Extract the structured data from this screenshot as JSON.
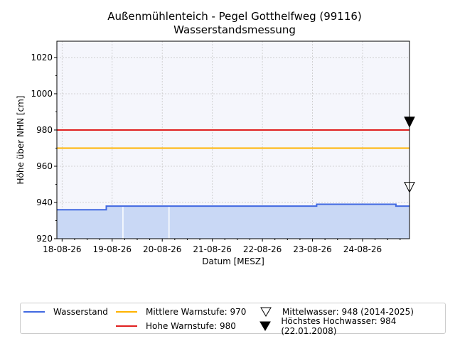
{
  "title": "Außenmühlenteich - Pegel Gotthelfweg (99116)",
  "subtitle": "Wasserstandsmessung",
  "colors": {
    "wasserstand": "#4169e1",
    "fill": "#c9d8f5",
    "mittlere_warnstufe": "#ffb300",
    "hohe_warnstufe": "#e02020",
    "plot_bg": "#f5f6fc"
  },
  "legend": {
    "wasserstand": "Wasserstand",
    "mittlere_warnstufe": "Mittlere Warnstufe: 970",
    "hohe_warnstufe": "Hohe Warnstufe: 980",
    "mittelwasser": "Mittelwasser: 948 (2014-2025)",
    "hoechstes_hochwasser": "Höchstes Hochwasser: 984 (22.01.2008)"
  },
  "chart_data": {
    "type": "area",
    "title": "Außenmühlenteich - Pegel Gotthelfweg (99116)",
    "subtitle": "Wasserstandsmessung",
    "xlabel": "Datum [MESZ]",
    "ylabel": "Höhe über NHN [cm]",
    "ylim": [
      920,
      1029
    ],
    "xlim": [
      "2026-08-17T21:30",
      "2026-08-24T22:30"
    ],
    "x_ticks": [
      "18-08-26",
      "19-08-26",
      "20-08-26",
      "21-08-26",
      "22-08-26",
      "23-08-26",
      "24-08-26"
    ],
    "y_ticks": [
      920,
      940,
      960,
      980,
      1000,
      1020
    ],
    "grid": true,
    "legend_position": "bottom",
    "series": [
      {
        "name": "Wasserstand",
        "x": [
          "2026-08-17T21:30",
          "2026-08-18T21:00",
          "2026-08-18T21:10",
          "2026-08-19T10:00",
          "2026-08-19T18:00",
          "2026-08-20T10:00",
          "2026-08-20T20:00",
          "2026-08-21T12:00",
          "2026-08-22T12:00",
          "2026-08-22T21:00",
          "2026-08-23T02:00",
          "2026-08-23T09:00",
          "2026-08-23T18:00",
          "2026-08-24T00:00",
          "2026-08-24T06:00",
          "2026-08-24T12:00",
          "2026-08-24T16:00",
          "2026-08-24T22:30"
        ],
        "values": [
          936,
          936,
          938,
          938,
          938,
          938,
          938,
          938,
          938,
          938,
          939,
          939,
          939,
          939,
          939,
          939,
          938,
          938
        ]
      },
      {
        "name": "Mittlere Warnstufe: 970",
        "values": [
          970
        ]
      },
      {
        "name": "Hohe Warnstufe: 980",
        "values": [
          980
        ]
      }
    ],
    "markers": [
      {
        "name": "Mittelwasser: 948 (2014-2025)",
        "value": 948,
        "style": "hollow-triangle-down"
      },
      {
        "name": "Höchstes Hochwasser: 984 (22.01.2008)",
        "value": 984,
        "style": "filled-triangle-down"
      }
    ]
  }
}
